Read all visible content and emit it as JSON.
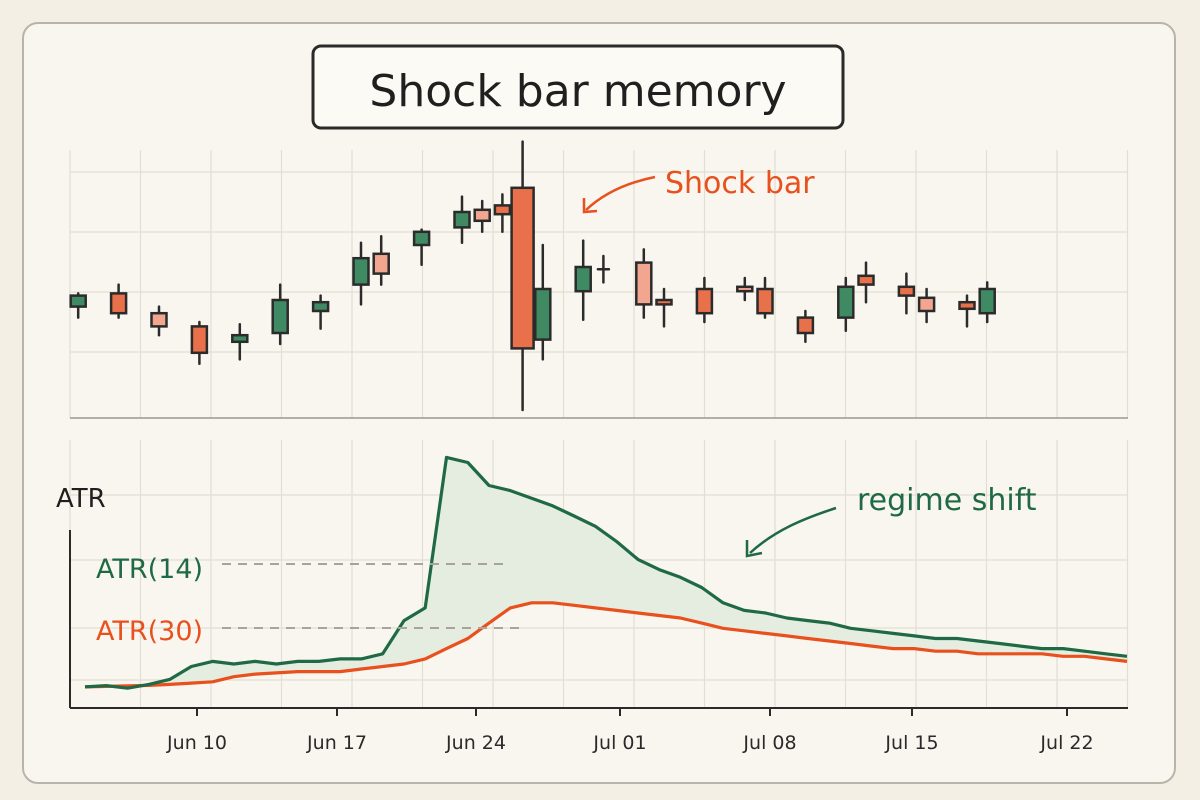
{
  "title": "Shock bar memory",
  "colors": {
    "up": "#3f8a63",
    "down": "#e8704a",
    "down_light": "#f2a58f",
    "atr14": "#1f6a45",
    "atr30": "#e8501e",
    "fill": "#e5ede0"
  },
  "chart_data": [
    {
      "type": "candlestick",
      "title": "",
      "annotations": [
        {
          "text": "Shock bar",
          "target": "Jun 28",
          "color": "#e8501e"
        }
      ],
      "x": [
        "Jun 05",
        "Jun 06",
        "Jun 07",
        "Jun 08",
        "Jun 09",
        "Jun 10",
        "Jun 11",
        "Jun 12",
        "Jun 13",
        "Jun 14",
        "Jun 15",
        "Jun 16",
        "Jun 17",
        "Jun 18",
        "Jun 19",
        "Jun 20",
        "Jun 21",
        "Jun 22",
        "Jun 23",
        "Jun 24",
        "Jun 25",
        "Jun 26",
        "Jun 27",
        "Jun 28",
        "Jun 29",
        "Jun 30",
        "Jul 01",
        "Jul 02",
        "Jul 03",
        "Jul 04",
        "Jul 05",
        "Jul 06",
        "Jul 07",
        "Jul 08",
        "Jul 09",
        "Jul 10",
        "Jul 11",
        "Jul 12",
        "Jul 13",
        "Jul 14",
        "Jul 15",
        "Jul 16",
        "Jul 17",
        "Jul 18",
        "Jul 19",
        "Jul 20",
        "Jul 21",
        "Jul 22",
        "Jul 23",
        "Jul 24",
        "Jul 25",
        "Jul 26"
      ],
      "candles": [
        {
          "x": "Jun 06",
          "o": 22,
          "h": 28,
          "l": 17,
          "c": 27
        },
        {
          "x": "Jun 08",
          "o": 28,
          "h": 32,
          "l": 17,
          "c": 19
        },
        {
          "x": "Jun 10",
          "o": 19,
          "h": 22,
          "l": 9,
          "c": 13
        },
        {
          "x": "Jun 12",
          "o": 13,
          "h": 15,
          "l": -4,
          "c": 1
        },
        {
          "x": "Jun 14",
          "o": 6,
          "h": 14,
          "l": -2,
          "c": 9
        },
        {
          "x": "Jun 16",
          "o": 10,
          "h": 32,
          "l": 5,
          "c": 25
        },
        {
          "x": "Jun 18",
          "o": 20,
          "h": 27,
          "l": 12,
          "c": 24
        },
        {
          "x": "Jun 20",
          "o": 32,
          "h": 51,
          "l": 23,
          "c": 44
        },
        {
          "x": "Jun 21",
          "o": 46,
          "h": 54,
          "l": 32,
          "c": 37
        },
        {
          "x": "Jun 23",
          "o": 50,
          "h": 57,
          "l": 41,
          "c": 56
        },
        {
          "x": "Jun 25",
          "o": 58,
          "h": 72,
          "l": 51,
          "c": 65
        },
        {
          "x": "Jun 26",
          "o": 66,
          "h": 70,
          "l": 56,
          "c": 61
        },
        {
          "x": "Jun 27",
          "o": 68,
          "h": 73,
          "l": 56,
          "c": 64
        },
        {
          "x": "Jun 28",
          "o": 76,
          "h": 97,
          "l": -25,
          "c": 3
        },
        {
          "x": "Jun 29",
          "o": 7,
          "h": 50,
          "l": -2,
          "c": 30
        },
        {
          "x": "Jul 01",
          "o": 29,
          "h": 52,
          "l": 16,
          "c": 40
        },
        {
          "x": "Jul 02",
          "o": 39,
          "h": 45,
          "l": 33,
          "c": 39
        },
        {
          "x": "Jul 04",
          "o": 42,
          "h": 48,
          "l": 17,
          "c": 23
        },
        {
          "x": "Jul 05",
          "o": 25,
          "h": 30,
          "l": 13,
          "c": 23
        },
        {
          "x": "Jul 07",
          "o": 30,
          "h": 35,
          "l": 15,
          "c": 19
        },
        {
          "x": "Jul 09",
          "o": 31,
          "h": 35,
          "l": 25,
          "c": 29
        },
        {
          "x": "Jul 10",
          "o": 30,
          "h": 35,
          "l": 17,
          "c": 19
        },
        {
          "x": "Jul 12",
          "o": 17,
          "h": 20,
          "l": 6,
          "c": 10
        },
        {
          "x": "Jul 14",
          "o": 17,
          "h": 35,
          "l": 11,
          "c": 31
        },
        {
          "x": "Jul 15",
          "o": 36,
          "h": 42,
          "l": 24,
          "c": 32
        },
        {
          "x": "Jul 17",
          "o": 31,
          "h": 37,
          "l": 19,
          "c": 27
        },
        {
          "x": "Jul 18",
          "o": 26,
          "h": 30,
          "l": 15,
          "c": 20
        },
        {
          "x": "Jul 20",
          "o": 24,
          "h": 27,
          "l": 13,
          "c": 21
        },
        {
          "x": "Jul 21",
          "o": 19,
          "h": 33,
          "l": 15,
          "c": 30
        }
      ]
    },
    {
      "type": "line",
      "ylabel": "ATR",
      "xticks": [
        "Jun 10",
        "Jun 17",
        "Jun 24",
        "Jul 01",
        "Jul 08",
        "Jul 15",
        "Jul 22"
      ],
      "annotations": [
        {
          "text": "regime shift",
          "color": "#1f6a45"
        }
      ],
      "series": [
        {
          "name": "ATR(14)",
          "color": "#1f6a45",
          "values": [
            2,
            2.5,
            1.5,
            3,
            5,
            10,
            12,
            11,
            12,
            11,
            12,
            12,
            13,
            13,
            15,
            28,
            33,
            92,
            90,
            81,
            79,
            76,
            73,
            69,
            65,
            59,
            52,
            48,
            45,
            41,
            35,
            32,
            31,
            29,
            28,
            27,
            25,
            24,
            23,
            22,
            21,
            21,
            20,
            19,
            18,
            17,
            17,
            16,
            15,
            14
          ]
        },
        {
          "name": "ATR(30)",
          "color": "#e8501e",
          "values": [
            2,
            2.2,
            2.4,
            2.6,
            3,
            3.5,
            4,
            6,
            7,
            7.5,
            8,
            8,
            8,
            9,
            10,
            11,
            13,
            17,
            21,
            27,
            33,
            35,
            35,
            34,
            33,
            32,
            31,
            30,
            29,
            27,
            25,
            24,
            23,
            22,
            21,
            20,
            19,
            18,
            17,
            17,
            16,
            16,
            15,
            15,
            15,
            15,
            14,
            14,
            13,
            12
          ]
        }
      ]
    }
  ],
  "atr_x": [
    "Jun 04",
    "Jun 05",
    "Jun 06",
    "Jun 07",
    "Jun 08",
    "Jun 09",
    "Jun 11",
    "Jun 12",
    "Jun 13",
    "Jun 14",
    "Jun 15",
    "Jun 16",
    "Jun 17",
    "Jun 18",
    "Jun 20",
    "Jun 22",
    "Jun 24",
    "Jun 27",
    "Jun 28",
    "Jun 29",
    "Jun 30",
    "Jul 01",
    "Jul 02",
    "Jul 03",
    "Jul 04",
    "Jul 05",
    "Jul 06",
    "Jul 07",
    "Jul 08",
    "Jul 09",
    "Jul 10",
    "Jul 11",
    "Jul 12",
    "Jul 13",
    "Jul 14",
    "Jul 15",
    "Jul 16",
    "Jul 17",
    "Jul 18",
    "Jul 19",
    "Jul 20",
    "Jul 21",
    "Jul 22",
    "Jul 23",
    "Jul 24",
    "Jul 25",
    "Jul 25",
    "Jul 26",
    "Jul 26",
    "Jul 26"
  ]
}
